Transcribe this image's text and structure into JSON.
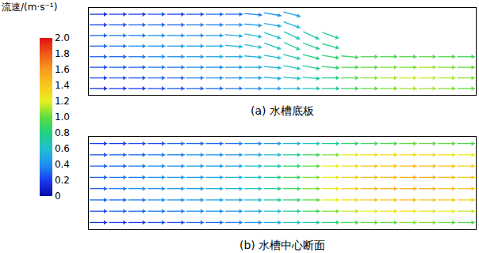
{
  "chart_data": {
    "type": "vector_field",
    "tick_labels": false,
    "colorbar": {
      "title": "流速/(m·s⁻¹)",
      "range": [
        0,
        2
      ],
      "ticks": [
        0,
        0.2,
        0.4,
        0.6,
        0.8,
        {
          "value": 1,
          "label": "1.0"
        },
        1.2,
        1.4,
        1.6,
        1.8,
        {
          "value": 2,
          "label": "2.0"
        }
      ]
    },
    "panels": [
      {
        "title": "(a) 水槽底板",
        "speed": [
          [
            0.15,
            0.2,
            0.2,
            0.25,
            0.2,
            0.25,
            0.3,
            0.3,
            0.35,
            0.4,
            0.45,
            null,
            null,
            null,
            null,
            null,
            null,
            null,
            null,
            null
          ],
          [
            0.2,
            0.25,
            0.3,
            0.3,
            0.3,
            0.35,
            0.35,
            0.4,
            0.45,
            0.5,
            0.55,
            null,
            null,
            null,
            null,
            null,
            null,
            null,
            null,
            null
          ],
          [
            0.3,
            0.35,
            0.35,
            0.4,
            0.4,
            0.4,
            0.45,
            0.5,
            0.55,
            0.6,
            0.65,
            0.7,
            0.75,
            null,
            null,
            null,
            null,
            null,
            null,
            null
          ],
          [
            0.3,
            0.35,
            0.4,
            0.4,
            0.45,
            0.45,
            0.5,
            0.55,
            0.6,
            0.65,
            0.7,
            0.75,
            0.8,
            null,
            null,
            null,
            null,
            null,
            null,
            null
          ],
          [
            0.3,
            0.3,
            0.35,
            0.4,
            0.4,
            0.45,
            0.5,
            0.5,
            0.55,
            0.6,
            0.7,
            0.8,
            0.85,
            0.9,
            0.95,
            0.95,
            0.95,
            1.0,
            0.95,
            0.9
          ],
          [
            0.25,
            0.3,
            0.3,
            0.35,
            0.35,
            0.4,
            0.4,
            0.45,
            0.5,
            0.55,
            0.65,
            0.75,
            0.85,
            0.95,
            1.0,
            1.05,
            1.05,
            1.1,
            1.05,
            1.0
          ],
          [
            0.2,
            0.25,
            0.25,
            0.3,
            0.3,
            0.35,
            0.4,
            0.4,
            0.45,
            0.5,
            0.6,
            0.7,
            0.8,
            0.95,
            1.05,
            1.1,
            1.15,
            1.15,
            1.1,
            1.05
          ],
          [
            0.15,
            0.2,
            0.2,
            0.25,
            0.25,
            0.3,
            0.3,
            0.35,
            0.4,
            0.45,
            0.55,
            0.65,
            0.75,
            0.9,
            1.0,
            1.05,
            1.1,
            1.1,
            1.05,
            1.0
          ]
        ],
        "direction": [
          [
            0,
            0,
            0,
            0,
            0,
            0,
            0,
            0,
            -5,
            -10,
            -15,
            null,
            null,
            null,
            null,
            null,
            null,
            null,
            null,
            null
          ],
          [
            0,
            0,
            0,
            0,
            0,
            0,
            0,
            0,
            -5,
            -10,
            -20,
            null,
            null,
            null,
            null,
            null,
            null,
            null,
            null,
            null
          ],
          [
            0,
            0,
            0,
            0,
            0,
            0,
            0,
            -5,
            -10,
            -20,
            -25,
            -25,
            -20,
            null,
            null,
            null,
            null,
            null,
            null,
            null
          ],
          [
            0,
            0,
            0,
            0,
            0,
            0,
            0,
            -5,
            -10,
            -20,
            -25,
            -20,
            -15,
            null,
            null,
            null,
            null,
            null,
            null,
            null
          ],
          [
            0,
            0,
            0,
            0,
            0,
            0,
            0,
            0,
            -5,
            -10,
            -15,
            -15,
            -10,
            -5,
            0,
            0,
            0,
            0,
            0,
            0
          ],
          [
            0,
            0,
            0,
            0,
            0,
            0,
            0,
            0,
            0,
            -5,
            -10,
            -10,
            -5,
            0,
            0,
            0,
            0,
            0,
            0,
            0
          ],
          [
            0,
            0,
            0,
            0,
            0,
            0,
            0,
            0,
            0,
            -5,
            -5,
            -5,
            0,
            0,
            0,
            0,
            0,
            0,
            0,
            0
          ],
          [
            0,
            0,
            0,
            0,
            0,
            0,
            0,
            0,
            0,
            0,
            0,
            0,
            0,
            0,
            0,
            0,
            0,
            0,
            0,
            0
          ]
        ]
      },
      {
        "title": "(b) 水槽中心断面",
        "speed": [
          [
            0.2,
            0.2,
            0.25,
            0.25,
            0.3,
            0.3,
            0.3,
            0.35,
            0.4,
            0.45,
            0.55,
            0.65,
            0.75,
            0.85,
            0.9,
            0.95,
            1.0,
            1.0,
            1.0,
            0.95
          ],
          [
            0.25,
            0.3,
            0.3,
            0.35,
            0.35,
            0.4,
            0.4,
            0.45,
            0.5,
            0.6,
            0.75,
            0.9,
            1.05,
            1.2,
            1.25,
            1.3,
            1.3,
            1.3,
            1.25,
            1.2
          ],
          [
            0.3,
            0.3,
            0.35,
            0.4,
            0.4,
            0.45,
            0.45,
            0.5,
            0.6,
            0.7,
            0.85,
            1.0,
            1.2,
            1.3,
            1.4,
            1.4,
            1.45,
            1.45,
            1.4,
            1.35
          ],
          [
            0.3,
            0.35,
            0.35,
            0.4,
            0.45,
            0.45,
            0.5,
            0.55,
            0.6,
            0.75,
            0.9,
            1.05,
            1.25,
            1.35,
            1.45,
            1.45,
            1.5,
            1.5,
            1.45,
            1.4
          ],
          [
            0.3,
            0.35,
            0.4,
            0.4,
            0.45,
            0.45,
            0.5,
            0.55,
            0.65,
            0.75,
            0.9,
            1.05,
            1.25,
            1.35,
            1.45,
            1.5,
            1.5,
            1.5,
            1.45,
            1.4
          ],
          [
            0.3,
            0.3,
            0.35,
            0.4,
            0.4,
            0.45,
            0.5,
            0.5,
            0.6,
            0.7,
            0.85,
            1.0,
            1.2,
            1.3,
            1.4,
            1.4,
            1.45,
            1.4,
            1.4,
            1.35
          ],
          [
            0.25,
            0.3,
            0.3,
            0.35,
            0.35,
            0.4,
            0.4,
            0.45,
            0.5,
            0.6,
            0.75,
            0.9,
            1.05,
            1.15,
            1.2,
            1.25,
            1.25,
            1.25,
            1.2,
            1.15
          ],
          [
            0.15,
            0.2,
            0.2,
            0.25,
            0.25,
            0.3,
            0.3,
            0.35,
            0.4,
            0.5,
            0.6,
            0.7,
            0.85,
            0.95,
            1.0,
            1.0,
            1.05,
            1.05,
            1.0,
            0.95
          ]
        ]
      }
    ]
  }
}
